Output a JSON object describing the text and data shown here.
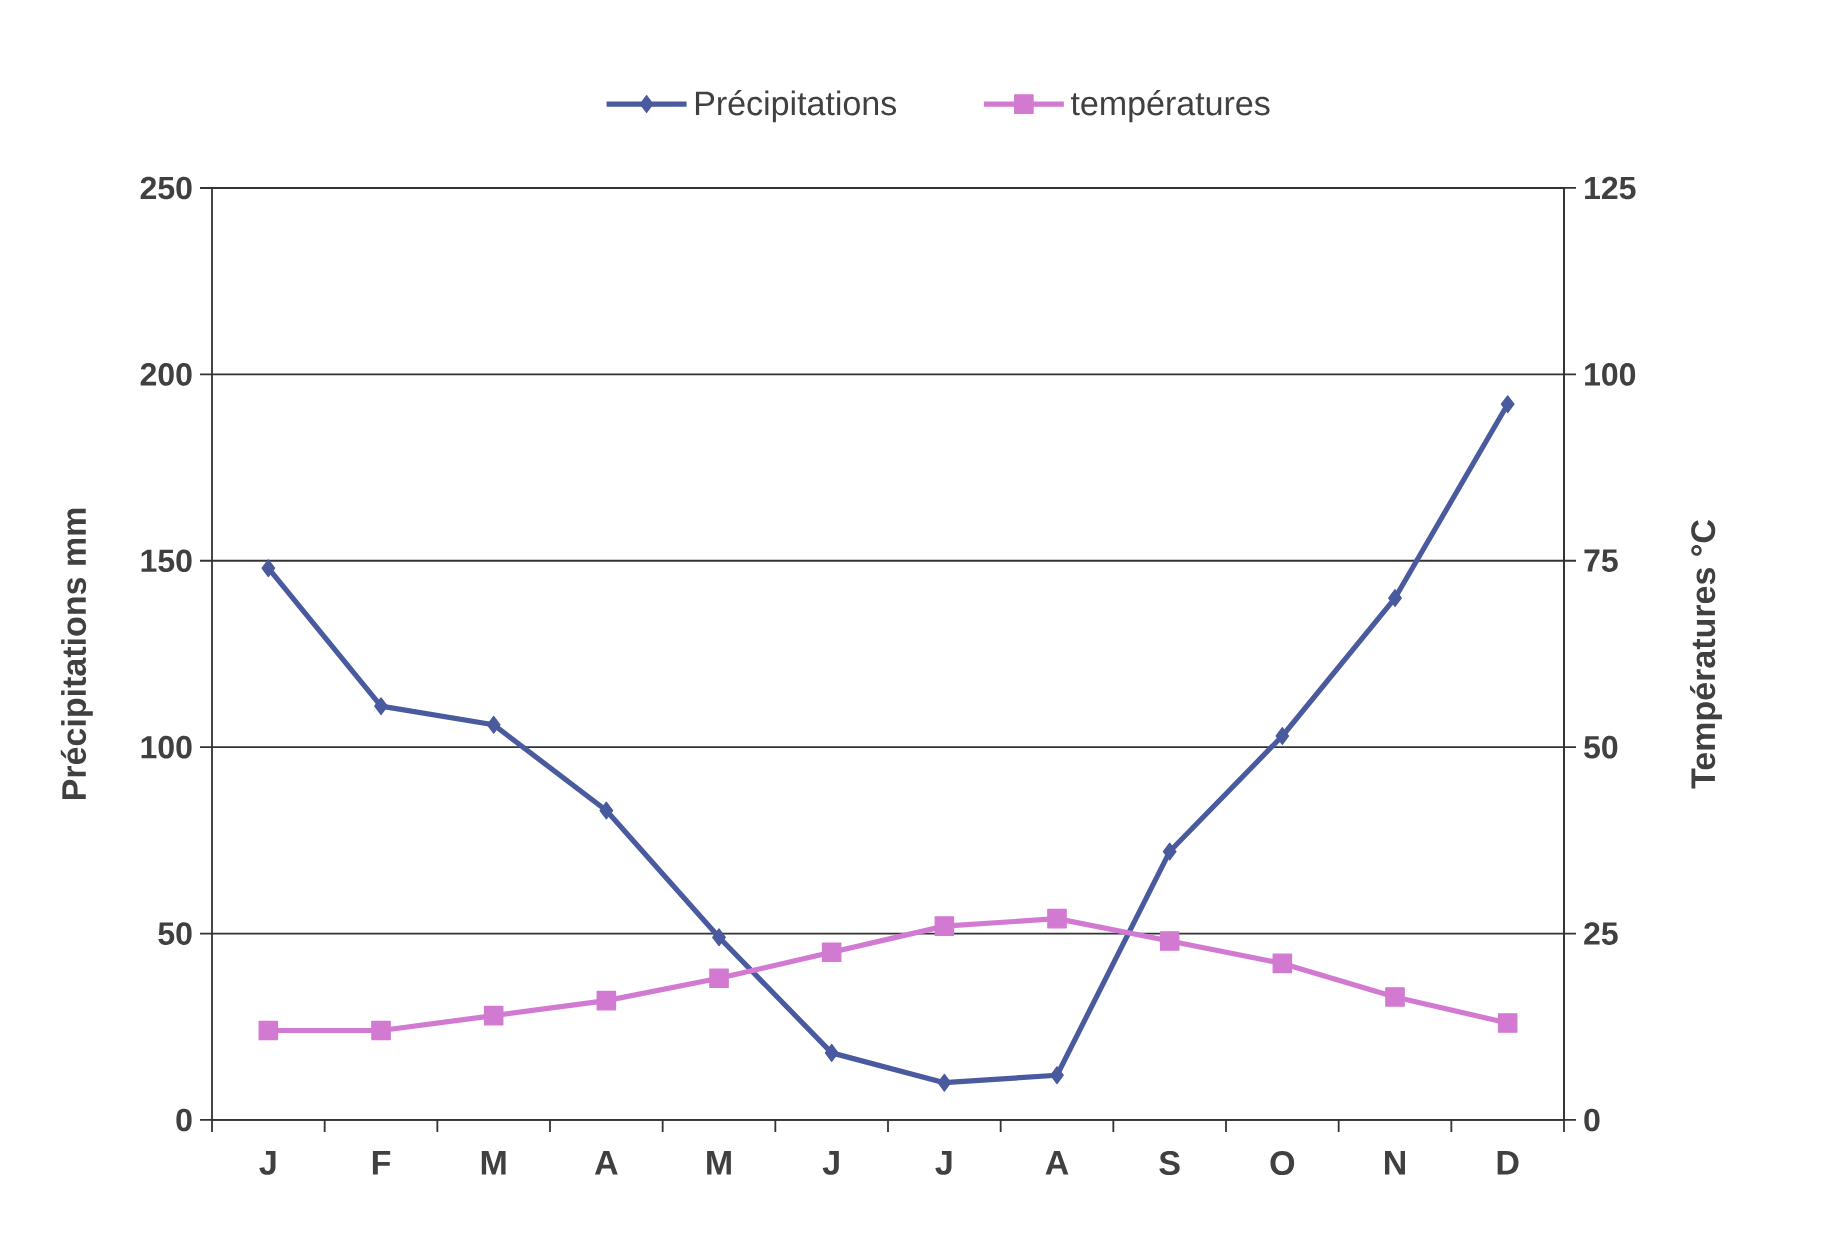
{
  "chart_data": {
    "type": "line",
    "categories": [
      "J",
      "F",
      "M",
      "A",
      "M",
      "J",
      "J",
      "A",
      "S",
      "O",
      "N",
      "D"
    ],
    "series": [
      {
        "name": "Précipitations",
        "color": "#4a5a9e",
        "marker": "diamond",
        "axis": "y",
        "values": [
          148,
          111,
          106,
          83,
          49,
          18,
          10,
          12,
          72,
          103,
          140,
          192
        ]
      },
      {
        "name": "températures",
        "color": "#d27ad2",
        "marker": "square",
        "axis": "y2",
        "values": [
          12,
          12,
          14,
          16,
          19,
          22.5,
          26,
          27,
          24,
          21,
          16.5,
          13
        ]
      }
    ],
    "ylabel": "Précipitations mm",
    "y2label": "Températures °C",
    "ylim": [
      0,
      250
    ],
    "yticks": [
      0,
      50,
      100,
      150,
      200,
      250
    ],
    "y2lim": [
      0,
      125
    ],
    "y2ticks": [
      0,
      25,
      50,
      75,
      100,
      125
    ],
    "grid": "y",
    "legend": "top"
  }
}
